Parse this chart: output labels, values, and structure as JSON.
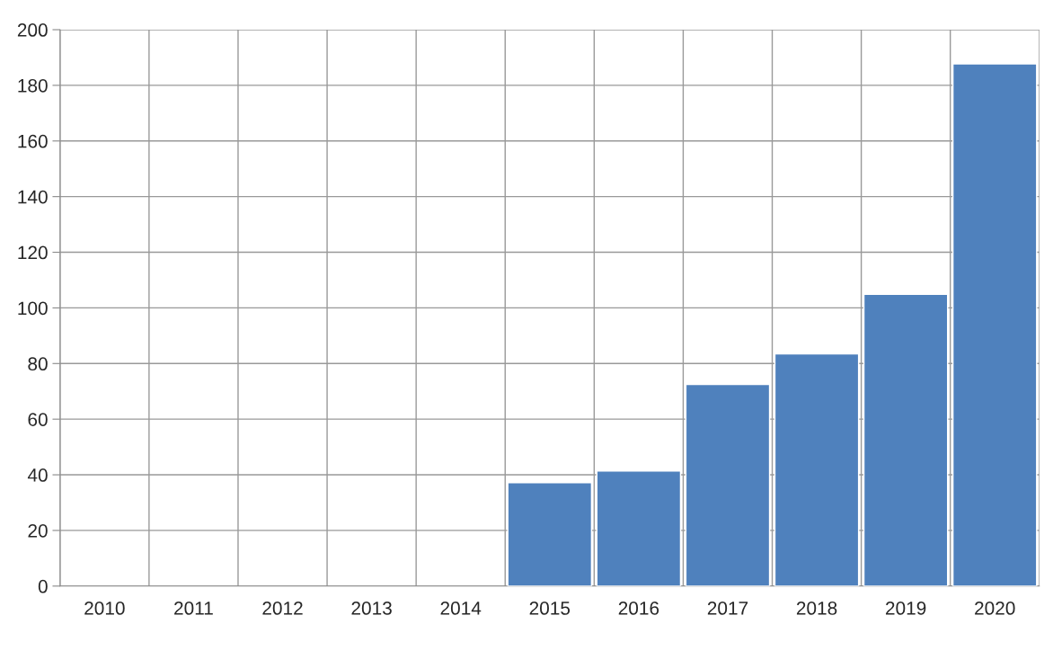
{
  "chart_data": {
    "type": "bar",
    "categories": [
      "2010",
      "2011",
      "2012",
      "2013",
      "2014",
      "2015",
      "2016",
      "2017",
      "2018",
      "2019",
      "2020"
    ],
    "values": [
      null,
      null,
      null,
      null,
      null,
      37.2,
      41.4,
      72.5,
      83.5,
      104.9,
      187.7
    ],
    "color": "#4f81bd",
    "ylim": [
      0,
      200
    ],
    "yticks": [
      0,
      20,
      40,
      60,
      80,
      100,
      120,
      140,
      160,
      180,
      200
    ],
    "grid": true
  }
}
